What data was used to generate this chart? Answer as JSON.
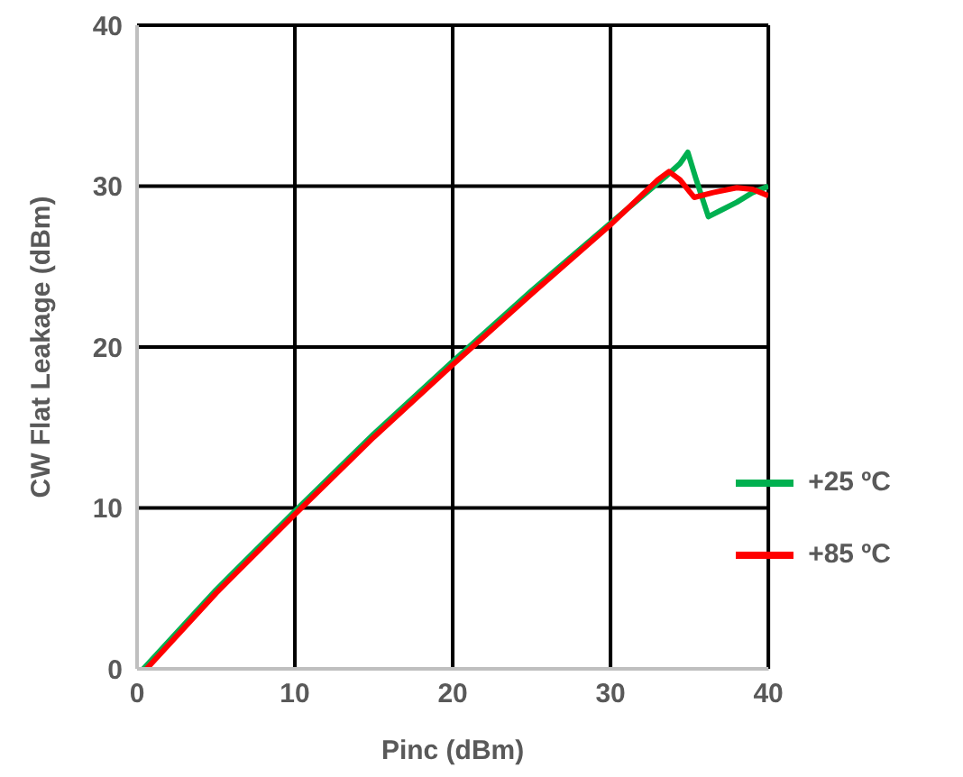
{
  "chart_data": {
    "type": "line",
    "xlabel": "Pinc (dBm)",
    "ylabel": "CW Flat Leakage (dBm)",
    "xlim": [
      0,
      40
    ],
    "xticks": [
      0,
      10,
      20,
      30,
      40
    ],
    "ylim": [
      0,
      40
    ],
    "yticks": [
      0,
      10,
      20,
      30,
      40
    ],
    "grid": true,
    "legend": "right",
    "marker": "none",
    "line_style": "solid",
    "series": [
      {
        "name": "+25 ºC",
        "color": "#00b050",
        "x": [
          0.4,
          5,
          10,
          15,
          20,
          25,
          30,
          33.5,
          34.4,
          34.9,
          35.4,
          36.2,
          37,
          38,
          39,
          40
        ],
        "values": [
          0,
          4.9,
          9.8,
          14.6,
          19.1,
          23.5,
          27.7,
          30.6,
          31.4,
          32.1,
          30.5,
          28.1,
          28.5,
          29,
          29.6,
          30
        ]
      },
      {
        "name": "+85 ºC",
        "color": "#ff0000",
        "x": [
          0.6,
          5,
          10,
          15,
          20,
          25,
          30,
          33,
          33.7,
          34.4,
          35.3,
          36.5,
          38,
          39,
          40
        ],
        "values": [
          0,
          4.7,
          9.6,
          14.4,
          18.9,
          23.3,
          27.6,
          30.4,
          30.9,
          30.4,
          29.3,
          29.6,
          29.9,
          29.8,
          29.4
        ]
      }
    ]
  }
}
